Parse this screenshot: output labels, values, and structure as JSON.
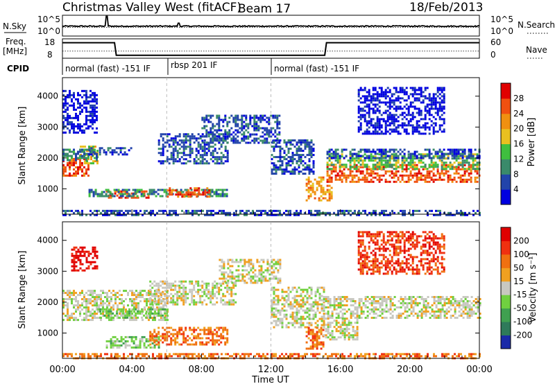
{
  "header": {
    "title": "Christmas Valley West (fitACF)",
    "beam": "Beam 17",
    "date": "18/Feb/2013"
  },
  "noise_panel": {
    "left_label": "N.Sky",
    "left_ticks": [
      "10^5",
      "10^0"
    ],
    "right_label": "N.Search",
    "right_ticks": [
      "10^5",
      "10^0"
    ]
  },
  "freq_panel": {
    "left_label_1": "Freq.",
    "left_label_2": "[MHz]",
    "left_ticks": [
      "18",
      "8"
    ],
    "right_label": "Nave",
    "right_ticks": [
      "60",
      "0"
    ],
    "freq_series": [
      {
        "t": 0,
        "f": 16
      },
      {
        "t": 3,
        "f": 16
      },
      {
        "t": 3.1,
        "f": 9.5
      },
      {
        "t": 15.1,
        "f": 9.5
      },
      {
        "t": 15.2,
        "f": 16
      },
      {
        "t": 24,
        "f": 16
      }
    ],
    "nave_level": 22
  },
  "cpid": {
    "label": "CPID",
    "segments": [
      {
        "label": "normal (fast) -151 IF",
        "start": 0,
        "end": 6
      },
      {
        "label": "rbsp 201 IF",
        "start": 6,
        "end": 12
      },
      {
        "label": "normal (fast) -151 IF",
        "start": 12,
        "end": 24
      }
    ]
  },
  "chart_data": [
    {
      "type": "heatmap",
      "name": "Power",
      "ylabel": "Slant Range [km]",
      "xlim": [
        0,
        24
      ],
      "ylim": [
        180,
        4600
      ],
      "yticks": [
        "1000",
        "2000",
        "3000",
        "4000"
      ],
      "colorbar": {
        "title": "Power [dB]",
        "labels": [
          "4",
          "8",
          "12",
          "16",
          "20",
          "24",
          "28"
        ],
        "colors": [
          "#0000e0",
          "#2244aa",
          "#3a8a6a",
          "#3fbf3f",
          "#e8c020",
          "#f09010",
          "#f05010",
          "#e00000"
        ]
      },
      "regions": [
        {
          "t0": 0.0,
          "t1": 1.5,
          "r0": 1400,
          "r1": 2000,
          "level": 6
        },
        {
          "t0": 1.0,
          "t1": 2.0,
          "r0": 1800,
          "r1": 2400,
          "level": 4
        },
        {
          "t0": 0.0,
          "t1": 2.0,
          "r0": 1950,
          "r1": 2300,
          "level": 2
        },
        {
          "t0": 1.5,
          "t1": 4.0,
          "r0": 2100,
          "r1": 2350,
          "level": 1
        },
        {
          "t0": 2.5,
          "t1": 5.0,
          "r0": 700,
          "r1": 950,
          "level": 6
        },
        {
          "t0": 1.5,
          "t1": 9.5,
          "r0": 780,
          "r1": 1000,
          "level": 2
        },
        {
          "t0": 6.0,
          "t1": 8.5,
          "r0": 750,
          "r1": 1050,
          "level": 6
        },
        {
          "t0": 5.5,
          "t1": 9.5,
          "r0": 1800,
          "r1": 2800,
          "level": 1
        },
        {
          "t0": 8.0,
          "t1": 12.5,
          "r0": 2500,
          "r1": 3400,
          "level": 1
        },
        {
          "t0": 12.0,
          "t1": 14.5,
          "r0": 1500,
          "r1": 2600,
          "level": 1
        },
        {
          "t0": 14.0,
          "t1": 15.5,
          "r0": 650,
          "r1": 1400,
          "level": 5
        },
        {
          "t0": 15.2,
          "t1": 24.0,
          "r0": 1200,
          "r1": 1800,
          "level": 6
        },
        {
          "t0": 15.2,
          "t1": 24.0,
          "r0": 1650,
          "r1": 2150,
          "level": 3
        },
        {
          "t0": 15.2,
          "t1": 24.0,
          "r0": 2000,
          "r1": 2300,
          "level": 1
        },
        {
          "t0": 0.0,
          "t1": 24.0,
          "r0": 180,
          "r1": 320,
          "level": 1
        },
        {
          "t0": 0.0,
          "t1": 2.0,
          "r0": 2800,
          "r1": 4200,
          "level": 0
        },
        {
          "t0": 17.0,
          "t1": 22.0,
          "r0": 2800,
          "r1": 4300,
          "level": 0
        }
      ]
    },
    {
      "type": "heatmap",
      "name": "Velocity",
      "ylabel": "Slant Range [km]",
      "xlim": [
        0,
        24
      ],
      "ylim": [
        180,
        4600
      ],
      "yticks": [
        "1000",
        "2000",
        "3000",
        "4000"
      ],
      "xticks": [
        "00:00",
        "04:00",
        "08:00",
        "12:00",
        "16:00",
        "20:00",
        "00:00"
      ],
      "xlabel": "Time UT",
      "colorbar": {
        "title": "Velocity [m s⁻¹]",
        "labels": [
          "200",
          "100",
          "50",
          "15",
          "-15",
          "-50",
          "-100",
          "-200"
        ],
        "colors": [
          "#1a2aa8",
          "#2e7a5a",
          "#3fa050",
          "#70d040",
          "#c8c8c0",
          "#f0a020",
          "#f07010",
          "#f03010",
          "#e00000"
        ]
      },
      "regions": [
        {
          "t0": 0.0,
          "t1": 6.0,
          "r0": 1400,
          "r1": 2400,
          "level": 4
        },
        {
          "t0": 2.5,
          "t1": 5.5,
          "r0": 550,
          "r1": 900,
          "level": 3
        },
        {
          "t0": 2.0,
          "t1": 6.0,
          "r0": 1500,
          "r1": 1800,
          "level": 3
        },
        {
          "t0": 5.0,
          "t1": 9.5,
          "r0": 600,
          "r1": 1200,
          "level": 6
        },
        {
          "t0": 5.0,
          "t1": 10.0,
          "r0": 1900,
          "r1": 2700,
          "level": 4
        },
        {
          "t0": 9.0,
          "t1": 12.5,
          "r0": 2600,
          "r1": 3400,
          "level": 4
        },
        {
          "t0": 12.0,
          "t1": 15.0,
          "r0": 1200,
          "r1": 2500,
          "level": 4
        },
        {
          "t0": 14.0,
          "t1": 15.0,
          "r0": 500,
          "r1": 1200,
          "level": 6
        },
        {
          "t0": 15.0,
          "t1": 24.0,
          "r0": 1500,
          "r1": 2200,
          "level": 4
        },
        {
          "t0": 15.0,
          "t1": 17.0,
          "r0": 800,
          "r1": 1500,
          "level": 4
        },
        {
          "t0": 0.0,
          "t1": 24.0,
          "r0": 180,
          "r1": 350,
          "level": 6
        },
        {
          "t0": 0.5,
          "t1": 2.0,
          "r0": 3000,
          "r1": 3800,
          "level": 8
        },
        {
          "t0": 17.0,
          "t1": 22.0,
          "r0": 2900,
          "r1": 4300,
          "level": 7
        }
      ]
    }
  ]
}
